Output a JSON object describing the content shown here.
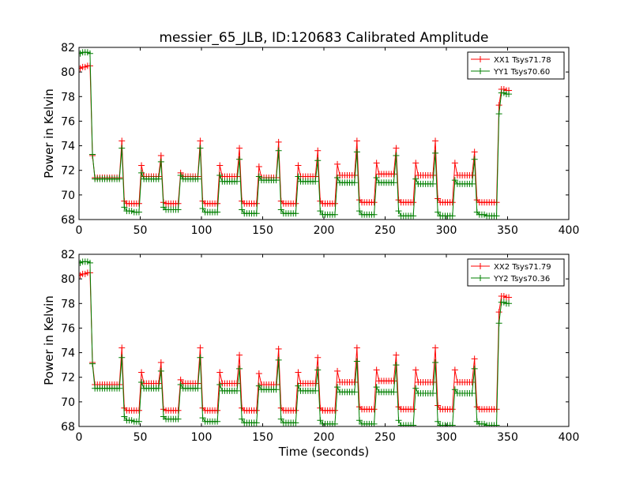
{
  "title": "messier_65_JLB, ID:120683 Calibrated Amplitude",
  "colors": {
    "xx": "#ff0000",
    "yy": "#007f00"
  },
  "chart_data": [
    {
      "type": "line",
      "xlabel": "",
      "ylabel": "Power in Kelvin",
      "xlim": [
        0,
        400
      ],
      "ylim": [
        68,
        82
      ],
      "xticks": [
        0,
        50,
        100,
        150,
        200,
        250,
        300,
        350,
        400
      ],
      "yticks": [
        68,
        70,
        72,
        74,
        76,
        78,
        80,
        82
      ],
      "grid": false,
      "legend": "top-right",
      "marker": "+",
      "x": [
        1,
        3,
        5,
        7,
        9,
        11,
        13,
        15,
        17,
        19,
        21,
        23,
        25,
        27,
        29,
        31,
        33,
        35,
        37,
        39,
        41,
        43,
        45,
        47,
        49,
        51,
        53,
        55,
        57,
        59,
        61,
        63,
        65,
        67,
        69,
        71,
        73,
        75,
        77,
        79,
        81,
        83,
        85,
        87,
        89,
        91,
        93,
        95,
        97,
        99,
        101,
        103,
        105,
        107,
        109,
        111,
        113,
        115,
        117,
        119,
        121,
        123,
        125,
        127,
        129,
        131,
        133,
        135,
        137,
        139,
        141,
        143,
        145,
        147,
        149,
        151,
        153,
        155,
        157,
        159,
        161,
        163,
        165,
        167,
        169,
        171,
        173,
        175,
        177,
        179,
        181,
        183,
        185,
        187,
        189,
        191,
        193,
        195,
        197,
        199,
        201,
        203,
        205,
        207,
        209,
        211,
        213,
        215,
        217,
        219,
        221,
        223,
        225,
        227,
        229,
        231,
        233,
        235,
        237,
        239,
        241,
        243,
        245,
        247,
        249,
        251,
        253,
        255,
        257,
        259,
        261,
        263,
        265,
        267,
        269,
        271,
        273,
        275,
        277,
        279,
        281,
        283,
        285,
        287,
        289,
        291,
        293,
        295,
        297,
        299,
        301,
        303,
        305,
        307,
        309,
        311,
        313,
        315,
        317,
        319,
        321,
        323,
        325,
        327,
        329,
        331,
        333,
        335,
        337,
        339,
        341,
        343,
        345,
        347,
        349,
        351
      ],
      "series": [
        {
          "name": "XX1 Tsys71.78",
          "color": "#ff0000",
          "values": [
            80.3,
            80.4,
            80.4,
            80.5,
            80.5,
            73.2,
            71.4,
            71.4,
            71.4,
            71.4,
            71.4,
            71.4,
            71.4,
            71.4,
            71.4,
            71.4,
            71.4,
            74.4,
            69.5,
            69.3,
            69.3,
            69.3,
            69.3,
            69.3,
            69.3,
            72.4,
            71.5,
            71.5,
            71.5,
            71.5,
            71.5,
            71.5,
            71.5,
            73.2,
            69.4,
            69.3,
            69.3,
            69.3,
            69.3,
            69.3,
            69.3,
            71.8,
            71.5,
            71.5,
            71.5,
            71.5,
            71.5,
            71.5,
            71.5,
            74.4,
            69.5,
            69.3,
            69.3,
            69.3,
            69.3,
            69.3,
            69.3,
            72.4,
            71.5,
            71.5,
            71.5,
            71.5,
            71.5,
            71.5,
            71.5,
            73.8,
            69.5,
            69.3,
            69.3,
            69.3,
            69.3,
            69.3,
            69.3,
            72.3,
            71.4,
            71.4,
            71.4,
            71.4,
            71.4,
            71.4,
            71.4,
            74.3,
            69.5,
            69.3,
            69.3,
            69.3,
            69.3,
            69.3,
            69.3,
            72.4,
            71.5,
            71.5,
            71.5,
            71.5,
            71.5,
            71.5,
            71.5,
            73.6,
            69.5,
            69.3,
            69.3,
            69.3,
            69.3,
            69.3,
            69.3,
            72.5,
            71.6,
            71.6,
            71.6,
            71.6,
            71.6,
            71.6,
            71.6,
            74.4,
            69.6,
            69.4,
            69.4,
            69.4,
            69.4,
            69.4,
            69.4,
            72.6,
            71.7,
            71.7,
            71.7,
            71.7,
            71.7,
            71.7,
            71.7,
            73.8,
            69.6,
            69.4,
            69.4,
            69.4,
            69.4,
            69.4,
            69.4,
            72.6,
            71.6,
            71.6,
            71.6,
            71.6,
            71.6,
            71.6,
            71.6,
            74.4,
            69.7,
            69.4,
            69.4,
            69.4,
            69.4,
            69.4,
            69.4,
            72.6,
            71.6,
            71.6,
            71.6,
            71.6,
            71.6,
            71.6,
            71.6,
            73.5,
            69.6,
            69.4,
            69.4,
            69.4,
            69.4,
            69.4,
            69.4,
            69.4,
            69.4,
            77.3,
            78.6,
            78.6,
            78.5,
            78.5
          ]
        },
        {
          "name": "YY1 Tsys70.60",
          "color": "#007f00",
          "values": [
            81.5,
            81.6,
            81.6,
            81.6,
            81.5,
            73.3,
            71.3,
            71.3,
            71.3,
            71.3,
            71.3,
            71.3,
            71.3,
            71.3,
            71.3,
            71.3,
            71.3,
            73.8,
            69.0,
            68.7,
            68.7,
            68.7,
            68.6,
            68.6,
            68.6,
            71.8,
            71.3,
            71.3,
            71.3,
            71.3,
            71.3,
            71.3,
            71.3,
            72.7,
            69.0,
            68.8,
            68.8,
            68.8,
            68.8,
            68.8,
            68.8,
            71.6,
            71.3,
            71.3,
            71.3,
            71.3,
            71.3,
            71.3,
            71.3,
            73.8,
            68.9,
            68.6,
            68.6,
            68.6,
            68.6,
            68.6,
            68.6,
            71.6,
            71.1,
            71.1,
            71.1,
            71.1,
            71.1,
            71.1,
            71.1,
            72.9,
            68.8,
            68.5,
            68.5,
            68.5,
            68.5,
            68.5,
            68.5,
            71.5,
            71.2,
            71.2,
            71.2,
            71.2,
            71.2,
            71.2,
            71.2,
            73.6,
            68.8,
            68.5,
            68.5,
            68.5,
            68.5,
            68.5,
            68.5,
            71.5,
            71.1,
            71.1,
            71.1,
            71.1,
            71.1,
            71.1,
            71.1,
            72.8,
            68.7,
            68.4,
            68.4,
            68.4,
            68.4,
            68.4,
            68.4,
            71.4,
            71.0,
            71.0,
            71.0,
            71.0,
            71.0,
            71.0,
            71.0,
            73.5,
            68.7,
            68.4,
            68.4,
            68.4,
            68.4,
            68.4,
            68.4,
            71.4,
            71.0,
            71.0,
            71.0,
            71.0,
            71.0,
            71.0,
            71.0,
            73.2,
            68.7,
            68.3,
            68.3,
            68.3,
            68.3,
            68.3,
            68.3,
            71.3,
            70.9,
            70.9,
            70.9,
            70.9,
            70.9,
            70.9,
            70.9,
            73.4,
            68.6,
            68.3,
            68.3,
            68.3,
            68.3,
            68.3,
            68.3,
            71.2,
            70.9,
            70.9,
            70.9,
            70.9,
            70.9,
            70.9,
            70.9,
            72.9,
            68.6,
            68.4,
            68.4,
            68.4,
            68.3,
            68.3,
            68.3,
            68.3,
            68.3,
            76.6,
            78.3,
            78.3,
            78.2,
            78.2
          ]
        }
      ]
    },
    {
      "type": "line",
      "xlabel": "Time (seconds)",
      "ylabel": "Power in Kelvin",
      "xlim": [
        0,
        400
      ],
      "ylim": [
        68,
        82
      ],
      "xticks": [
        0,
        50,
        100,
        150,
        200,
        250,
        300,
        350,
        400
      ],
      "yticks": [
        68,
        70,
        72,
        74,
        76,
        78,
        80,
        82
      ],
      "grid": false,
      "legend": "top-right",
      "marker": "+",
      "x": [
        1,
        3,
        5,
        7,
        9,
        11,
        13,
        15,
        17,
        19,
        21,
        23,
        25,
        27,
        29,
        31,
        33,
        35,
        37,
        39,
        41,
        43,
        45,
        47,
        49,
        51,
        53,
        55,
        57,
        59,
        61,
        63,
        65,
        67,
        69,
        71,
        73,
        75,
        77,
        79,
        81,
        83,
        85,
        87,
        89,
        91,
        93,
        95,
        97,
        99,
        101,
        103,
        105,
        107,
        109,
        111,
        113,
        115,
        117,
        119,
        121,
        123,
        125,
        127,
        129,
        131,
        133,
        135,
        137,
        139,
        141,
        143,
        145,
        147,
        149,
        151,
        153,
        155,
        157,
        159,
        161,
        163,
        165,
        167,
        169,
        171,
        173,
        175,
        177,
        179,
        181,
        183,
        185,
        187,
        189,
        191,
        193,
        195,
        197,
        199,
        201,
        203,
        205,
        207,
        209,
        211,
        213,
        215,
        217,
        219,
        221,
        223,
        225,
        227,
        229,
        231,
        233,
        235,
        237,
        239,
        241,
        243,
        245,
        247,
        249,
        251,
        253,
        255,
        257,
        259,
        261,
        263,
        265,
        267,
        269,
        271,
        273,
        275,
        277,
        279,
        281,
        283,
        285,
        287,
        289,
        291,
        293,
        295,
        297,
        299,
        301,
        303,
        305,
        307,
        309,
        311,
        313,
        315,
        317,
        319,
        321,
        323,
        325,
        327,
        329,
        331,
        333,
        335,
        337,
        339,
        341,
        343,
        345,
        347,
        349,
        351
      ],
      "series": [
        {
          "name": "XX2 Tsys71.79",
          "color": "#ff0000",
          "values": [
            80.3,
            80.4,
            80.4,
            80.5,
            80.5,
            73.2,
            71.4,
            71.4,
            71.4,
            71.4,
            71.4,
            71.4,
            71.4,
            71.4,
            71.4,
            71.4,
            71.4,
            74.4,
            69.5,
            69.3,
            69.3,
            69.3,
            69.3,
            69.3,
            69.3,
            72.4,
            71.5,
            71.5,
            71.5,
            71.5,
            71.5,
            71.5,
            71.5,
            73.2,
            69.4,
            69.3,
            69.3,
            69.3,
            69.3,
            69.3,
            69.3,
            71.8,
            71.5,
            71.5,
            71.5,
            71.5,
            71.5,
            71.5,
            71.5,
            74.4,
            69.5,
            69.3,
            69.3,
            69.3,
            69.3,
            69.3,
            69.3,
            72.4,
            71.5,
            71.5,
            71.5,
            71.5,
            71.5,
            71.5,
            71.5,
            73.8,
            69.5,
            69.3,
            69.3,
            69.3,
            69.3,
            69.3,
            69.3,
            72.3,
            71.4,
            71.4,
            71.4,
            71.4,
            71.4,
            71.4,
            71.4,
            74.3,
            69.5,
            69.3,
            69.3,
            69.3,
            69.3,
            69.3,
            69.3,
            72.4,
            71.5,
            71.5,
            71.5,
            71.5,
            71.5,
            71.5,
            71.5,
            73.6,
            69.5,
            69.3,
            69.3,
            69.3,
            69.3,
            69.3,
            69.3,
            72.5,
            71.6,
            71.6,
            71.6,
            71.6,
            71.6,
            71.6,
            71.6,
            74.4,
            69.6,
            69.4,
            69.4,
            69.4,
            69.4,
            69.4,
            69.4,
            72.6,
            71.7,
            71.7,
            71.7,
            71.7,
            71.7,
            71.7,
            71.7,
            73.8,
            69.6,
            69.4,
            69.4,
            69.4,
            69.4,
            69.4,
            69.4,
            72.6,
            71.6,
            71.6,
            71.6,
            71.6,
            71.6,
            71.6,
            71.6,
            74.4,
            69.7,
            69.4,
            69.4,
            69.4,
            69.4,
            69.4,
            69.4,
            72.6,
            71.6,
            71.6,
            71.6,
            71.6,
            71.6,
            71.6,
            71.6,
            73.5,
            69.6,
            69.4,
            69.4,
            69.4,
            69.4,
            69.4,
            69.4,
            69.4,
            69.4,
            77.3,
            78.6,
            78.6,
            78.5,
            78.5
          ]
        },
        {
          "name": "YY2 Tsys70.36",
          "color": "#007f00",
          "values": [
            81.3,
            81.4,
            81.4,
            81.4,
            81.3,
            73.1,
            71.1,
            71.1,
            71.1,
            71.1,
            71.1,
            71.1,
            71.1,
            71.1,
            71.1,
            71.1,
            71.1,
            73.6,
            68.8,
            68.5,
            68.5,
            68.5,
            68.4,
            68.4,
            68.4,
            71.6,
            71.1,
            71.1,
            71.1,
            71.1,
            71.1,
            71.1,
            71.1,
            72.5,
            68.8,
            68.6,
            68.6,
            68.6,
            68.6,
            68.6,
            68.6,
            71.4,
            71.1,
            71.1,
            71.1,
            71.1,
            71.1,
            71.1,
            71.1,
            73.6,
            68.7,
            68.4,
            68.4,
            68.4,
            68.4,
            68.4,
            68.4,
            71.4,
            70.9,
            70.9,
            70.9,
            70.9,
            70.9,
            70.9,
            70.9,
            72.7,
            68.6,
            68.3,
            68.3,
            68.3,
            68.3,
            68.3,
            68.3,
            71.3,
            71.0,
            71.0,
            71.0,
            71.0,
            71.0,
            71.0,
            71.0,
            73.4,
            68.6,
            68.3,
            68.3,
            68.3,
            68.3,
            68.3,
            68.3,
            71.3,
            70.9,
            70.9,
            70.9,
            70.9,
            70.9,
            70.9,
            70.9,
            72.6,
            68.5,
            68.2,
            68.2,
            68.2,
            68.2,
            68.2,
            68.2,
            71.2,
            70.8,
            70.8,
            70.8,
            70.8,
            70.8,
            70.8,
            70.8,
            73.3,
            68.5,
            68.2,
            68.2,
            68.2,
            68.2,
            68.2,
            68.2,
            71.2,
            70.8,
            70.8,
            70.8,
            70.8,
            70.8,
            70.8,
            70.8,
            73.0,
            68.5,
            68.1,
            68.1,
            68.1,
            68.1,
            68.1,
            68.1,
            71.1,
            70.7,
            70.7,
            70.7,
            70.7,
            70.7,
            70.7,
            70.7,
            73.2,
            68.4,
            68.1,
            68.1,
            68.1,
            68.1,
            68.1,
            68.1,
            71.0,
            70.7,
            70.7,
            70.7,
            70.7,
            70.7,
            70.7,
            70.7,
            72.7,
            68.4,
            68.2,
            68.2,
            68.2,
            68.1,
            68.1,
            68.1,
            68.1,
            68.1,
            76.4,
            78.1,
            78.1,
            78.0,
            78.0
          ]
        }
      ]
    }
  ]
}
